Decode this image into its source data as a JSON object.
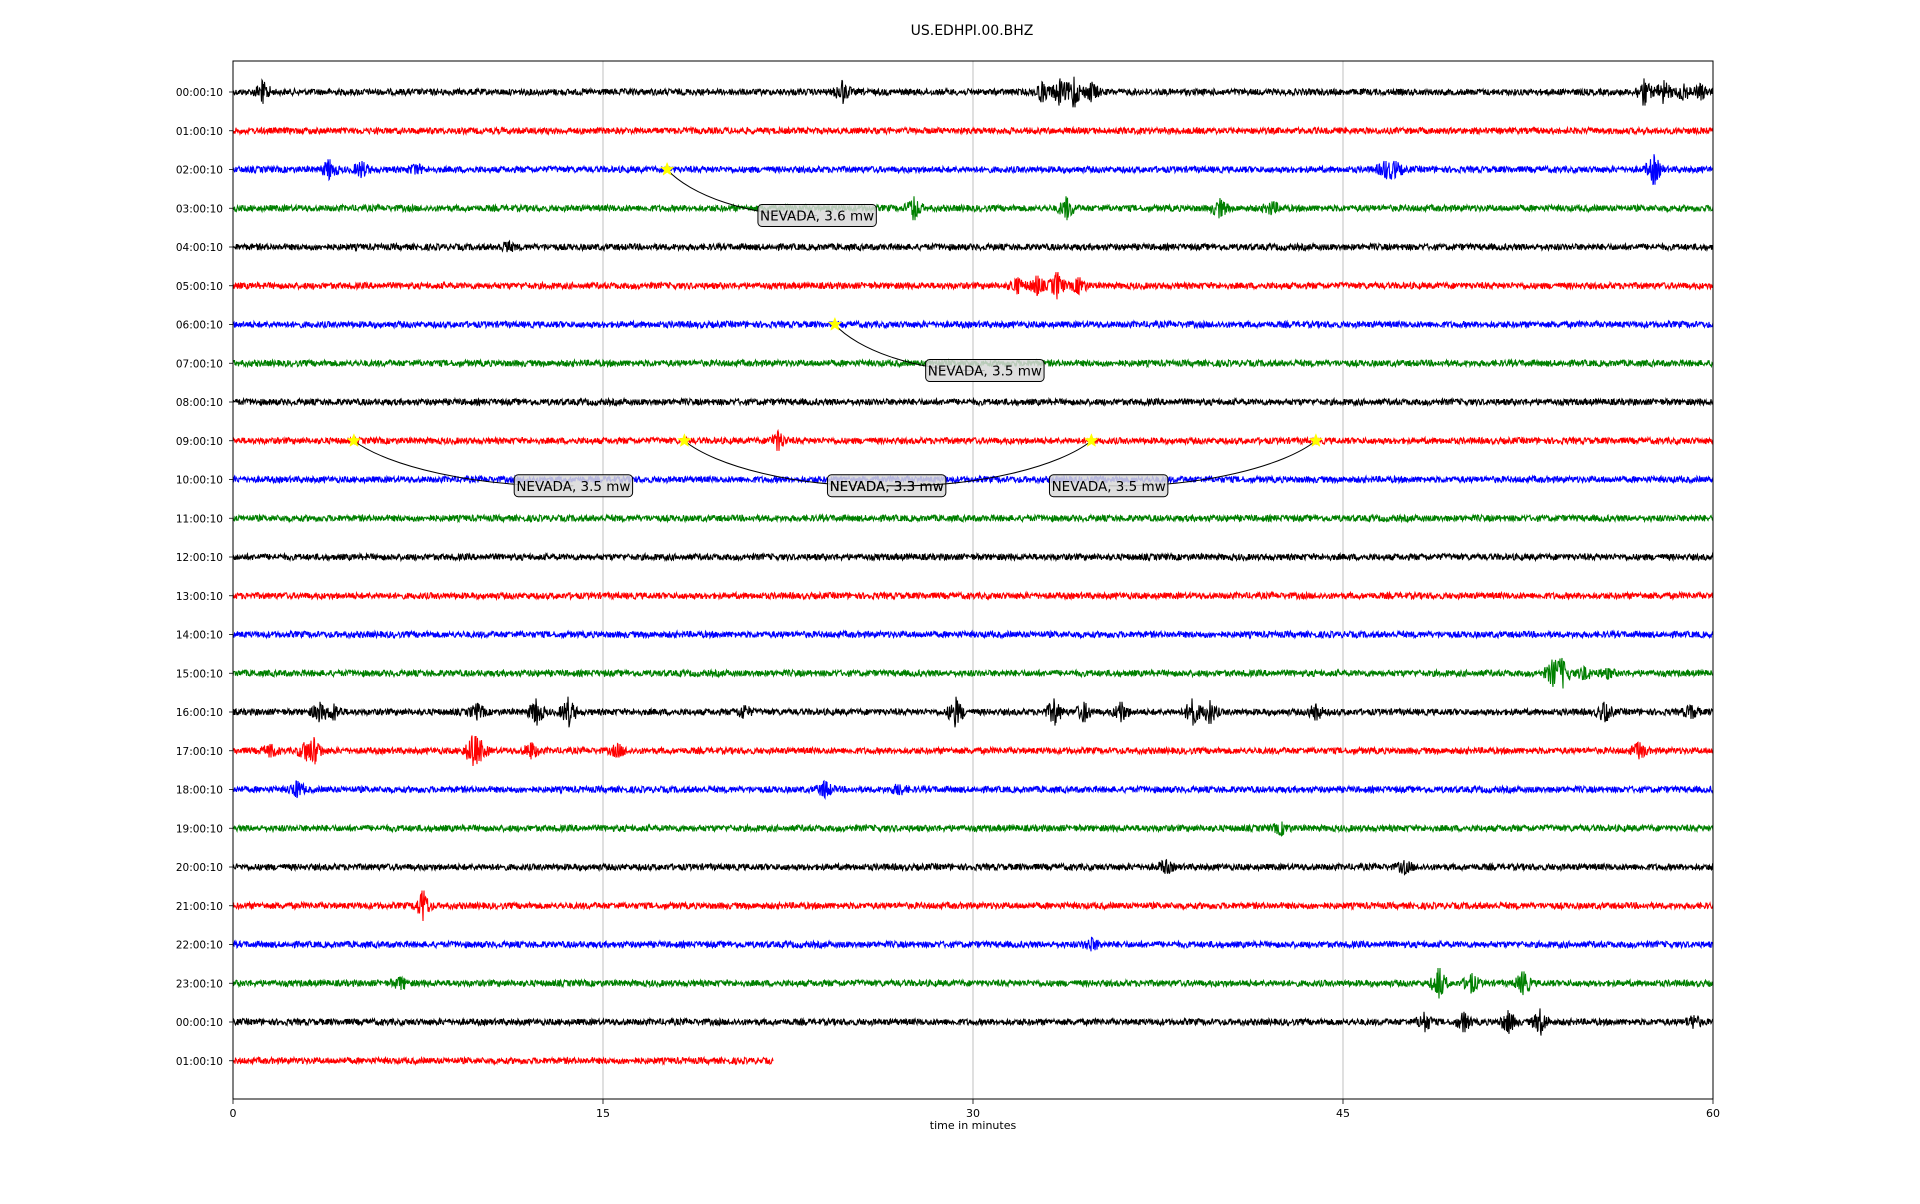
{
  "chart_data": {
    "type": "line",
    "title": "US.EDHPI.00.BHZ",
    "xlabel": "time in minutes",
    "ylabel": "",
    "xlim": [
      0,
      60
    ],
    "x_ticks": [
      0,
      15,
      30,
      45,
      60
    ],
    "grid": "vertical",
    "colors": [
      "#000000",
      "#ff0000",
      "#0000ff",
      "#008000"
    ],
    "rows": [
      {
        "label": "00:00:10",
        "color": "#000000",
        "end_minute": 60,
        "events": [
          {
            "t": 1.2,
            "amp": 0.7
          },
          {
            "t": 24.7,
            "amp": 0.7
          },
          {
            "t": 32.8,
            "amp": 0.6
          },
          {
            "t": 33.5,
            "amp": 0.8
          },
          {
            "t": 34.1,
            "amp": 0.9
          },
          {
            "t": 34.8,
            "amp": 0.6
          },
          {
            "t": 57.2,
            "amp": 0.8
          },
          {
            "t": 58.0,
            "amp": 0.7
          },
          {
            "t": 58.8,
            "amp": 0.5
          },
          {
            "t": 59.5,
            "amp": 0.5
          }
        ]
      },
      {
        "label": "01:00:10",
        "color": "#ff0000",
        "end_minute": 60,
        "events": []
      },
      {
        "label": "02:00:10",
        "color": "#0000ff",
        "end_minute": 60,
        "events": [
          {
            "t": 3.9,
            "amp": 0.6
          },
          {
            "t": 5.2,
            "amp": 0.5
          },
          {
            "t": 7.4,
            "amp": 0.3
          },
          {
            "t": 46.7,
            "amp": 0.5
          },
          {
            "t": 47.1,
            "amp": 0.5
          },
          {
            "t": 57.6,
            "amp": 0.9
          }
        ]
      },
      {
        "label": "03:00:10",
        "color": "#008000",
        "end_minute": 60,
        "events": [
          {
            "t": 27.6,
            "amp": 0.7
          },
          {
            "t": 33.8,
            "amp": 0.7
          },
          {
            "t": 40.0,
            "amp": 0.6
          },
          {
            "t": 42.1,
            "amp": 0.4
          }
        ]
      },
      {
        "label": "04:00:10",
        "color": "#000000",
        "end_minute": 60,
        "events": [
          {
            "t": 11.1,
            "amp": 0.3
          }
        ]
      },
      {
        "label": "05:00:10",
        "color": "#ff0000",
        "end_minute": 60,
        "events": [
          {
            "t": 31.8,
            "amp": 0.5
          },
          {
            "t": 32.6,
            "amp": 0.6
          },
          {
            "t": 33.4,
            "amp": 0.8
          },
          {
            "t": 34.3,
            "amp": 0.5
          }
        ]
      },
      {
        "label": "06:00:10",
        "color": "#0000ff",
        "end_minute": 60,
        "events": []
      },
      {
        "label": "07:00:10",
        "color": "#008000",
        "end_minute": 60,
        "events": []
      },
      {
        "label": "08:00:10",
        "color": "#000000",
        "end_minute": 60,
        "events": []
      },
      {
        "label": "09:00:10",
        "color": "#ff0000",
        "end_minute": 60,
        "events": [
          {
            "t": 22.1,
            "amp": 0.6
          }
        ]
      },
      {
        "label": "10:00:10",
        "color": "#0000ff",
        "end_minute": 60,
        "events": []
      },
      {
        "label": "11:00:10",
        "color": "#008000",
        "end_minute": 60,
        "events": []
      },
      {
        "label": "12:00:10",
        "color": "#000000",
        "end_minute": 60,
        "events": []
      },
      {
        "label": "13:00:10",
        "color": "#ff0000",
        "end_minute": 60,
        "events": []
      },
      {
        "label": "14:00:10",
        "color": "#0000ff",
        "end_minute": 60,
        "events": []
      },
      {
        "label": "15:00:10",
        "color": "#008000",
        "end_minute": 60,
        "events": [
          {
            "t": 53.5,
            "amp": 0.8
          },
          {
            "t": 53.9,
            "amp": 0.9
          },
          {
            "t": 54.8,
            "amp": 0.4
          },
          {
            "t": 55.7,
            "amp": 0.3
          }
        ]
      },
      {
        "label": "16:00:10",
        "color": "#000000",
        "end_minute": 60,
        "events": [
          {
            "t": 3.5,
            "amp": 0.6
          },
          {
            "t": 4.1,
            "amp": 0.5
          },
          {
            "t": 9.9,
            "amp": 0.5
          },
          {
            "t": 12.3,
            "amp": 0.8
          },
          {
            "t": 13.6,
            "amp": 0.9
          },
          {
            "t": 20.7,
            "amp": 0.4
          },
          {
            "t": 29.3,
            "amp": 0.9
          },
          {
            "t": 33.3,
            "amp": 0.8
          },
          {
            "t": 34.5,
            "amp": 0.6
          },
          {
            "t": 36.0,
            "amp": 0.6
          },
          {
            "t": 38.9,
            "amp": 0.8
          },
          {
            "t": 39.6,
            "amp": 0.7
          },
          {
            "t": 43.9,
            "amp": 0.5
          },
          {
            "t": 55.6,
            "amp": 0.6
          },
          {
            "t": 59.1,
            "amp": 0.4
          }
        ]
      },
      {
        "label": "17:00:10",
        "color": "#ff0000",
        "end_minute": 60,
        "events": [
          {
            "t": 1.5,
            "amp": 0.4
          },
          {
            "t": 2.9,
            "amp": 0.5
          },
          {
            "t": 3.3,
            "amp": 0.8
          },
          {
            "t": 9.7,
            "amp": 0.9
          },
          {
            "t": 10.0,
            "amp": 0.6
          },
          {
            "t": 12.1,
            "amp": 0.5
          },
          {
            "t": 15.6,
            "amp": 0.4
          },
          {
            "t": 57.0,
            "amp": 0.5
          }
        ]
      },
      {
        "label": "18:00:10",
        "color": "#0000ff",
        "end_minute": 60,
        "events": [
          {
            "t": 2.6,
            "amp": 0.5
          },
          {
            "t": 24.0,
            "amp": 0.5
          },
          {
            "t": 27.0,
            "amp": 0.3
          }
        ]
      },
      {
        "label": "19:00:10",
        "color": "#008000",
        "end_minute": 60,
        "events": [
          {
            "t": 42.5,
            "amp": 0.4
          }
        ]
      },
      {
        "label": "20:00:10",
        "color": "#000000",
        "end_minute": 60,
        "events": [
          {
            "t": 37.8,
            "amp": 0.4
          },
          {
            "t": 47.5,
            "amp": 0.4
          }
        ]
      },
      {
        "label": "21:00:10",
        "color": "#ff0000",
        "end_minute": 60,
        "events": [
          {
            "t": 7.7,
            "amp": 0.9
          }
        ]
      },
      {
        "label": "22:00:10",
        "color": "#0000ff",
        "end_minute": 60,
        "events": [
          {
            "t": 34.8,
            "amp": 0.4
          }
        ]
      },
      {
        "label": "23:00:10",
        "color": "#008000",
        "end_minute": 60,
        "events": [
          {
            "t": 6.8,
            "amp": 0.4
          },
          {
            "t": 48.9,
            "amp": 0.9
          },
          {
            "t": 50.2,
            "amp": 0.6
          },
          {
            "t": 52.3,
            "amp": 0.7
          }
        ]
      },
      {
        "label": "00:00:10",
        "color": "#000000",
        "end_minute": 60,
        "events": [
          {
            "t": 48.3,
            "amp": 0.6
          },
          {
            "t": 49.9,
            "amp": 0.6
          },
          {
            "t": 51.7,
            "amp": 0.7
          },
          {
            "t": 53.0,
            "amp": 0.8
          },
          {
            "t": 59.2,
            "amp": 0.4
          }
        ]
      },
      {
        "label": "01:00:10",
        "color": "#ff0000",
        "end_minute": 21.9,
        "events": []
      }
    ],
    "earthquakes": [
      {
        "label": "NEVADA, 3.6 mw",
        "row": 2,
        "minute": 17.6
      },
      {
        "label": "NEVADA, 3.5 mw",
        "row": 6,
        "minute": 24.4
      },
      {
        "label": "NEVADA, 3.5 mw",
        "row": 9,
        "minute": 4.9
      },
      {
        "label": "NEVADA, 3.3 mw",
        "row": 9,
        "minute": 18.3
      },
      {
        "label": "NEVADA, 3.3 mw",
        "row": 9,
        "minute": 34.8
      },
      {
        "label": "NEVADA, 3.5 mw",
        "row": 9,
        "minute": 43.9
      }
    ]
  }
}
